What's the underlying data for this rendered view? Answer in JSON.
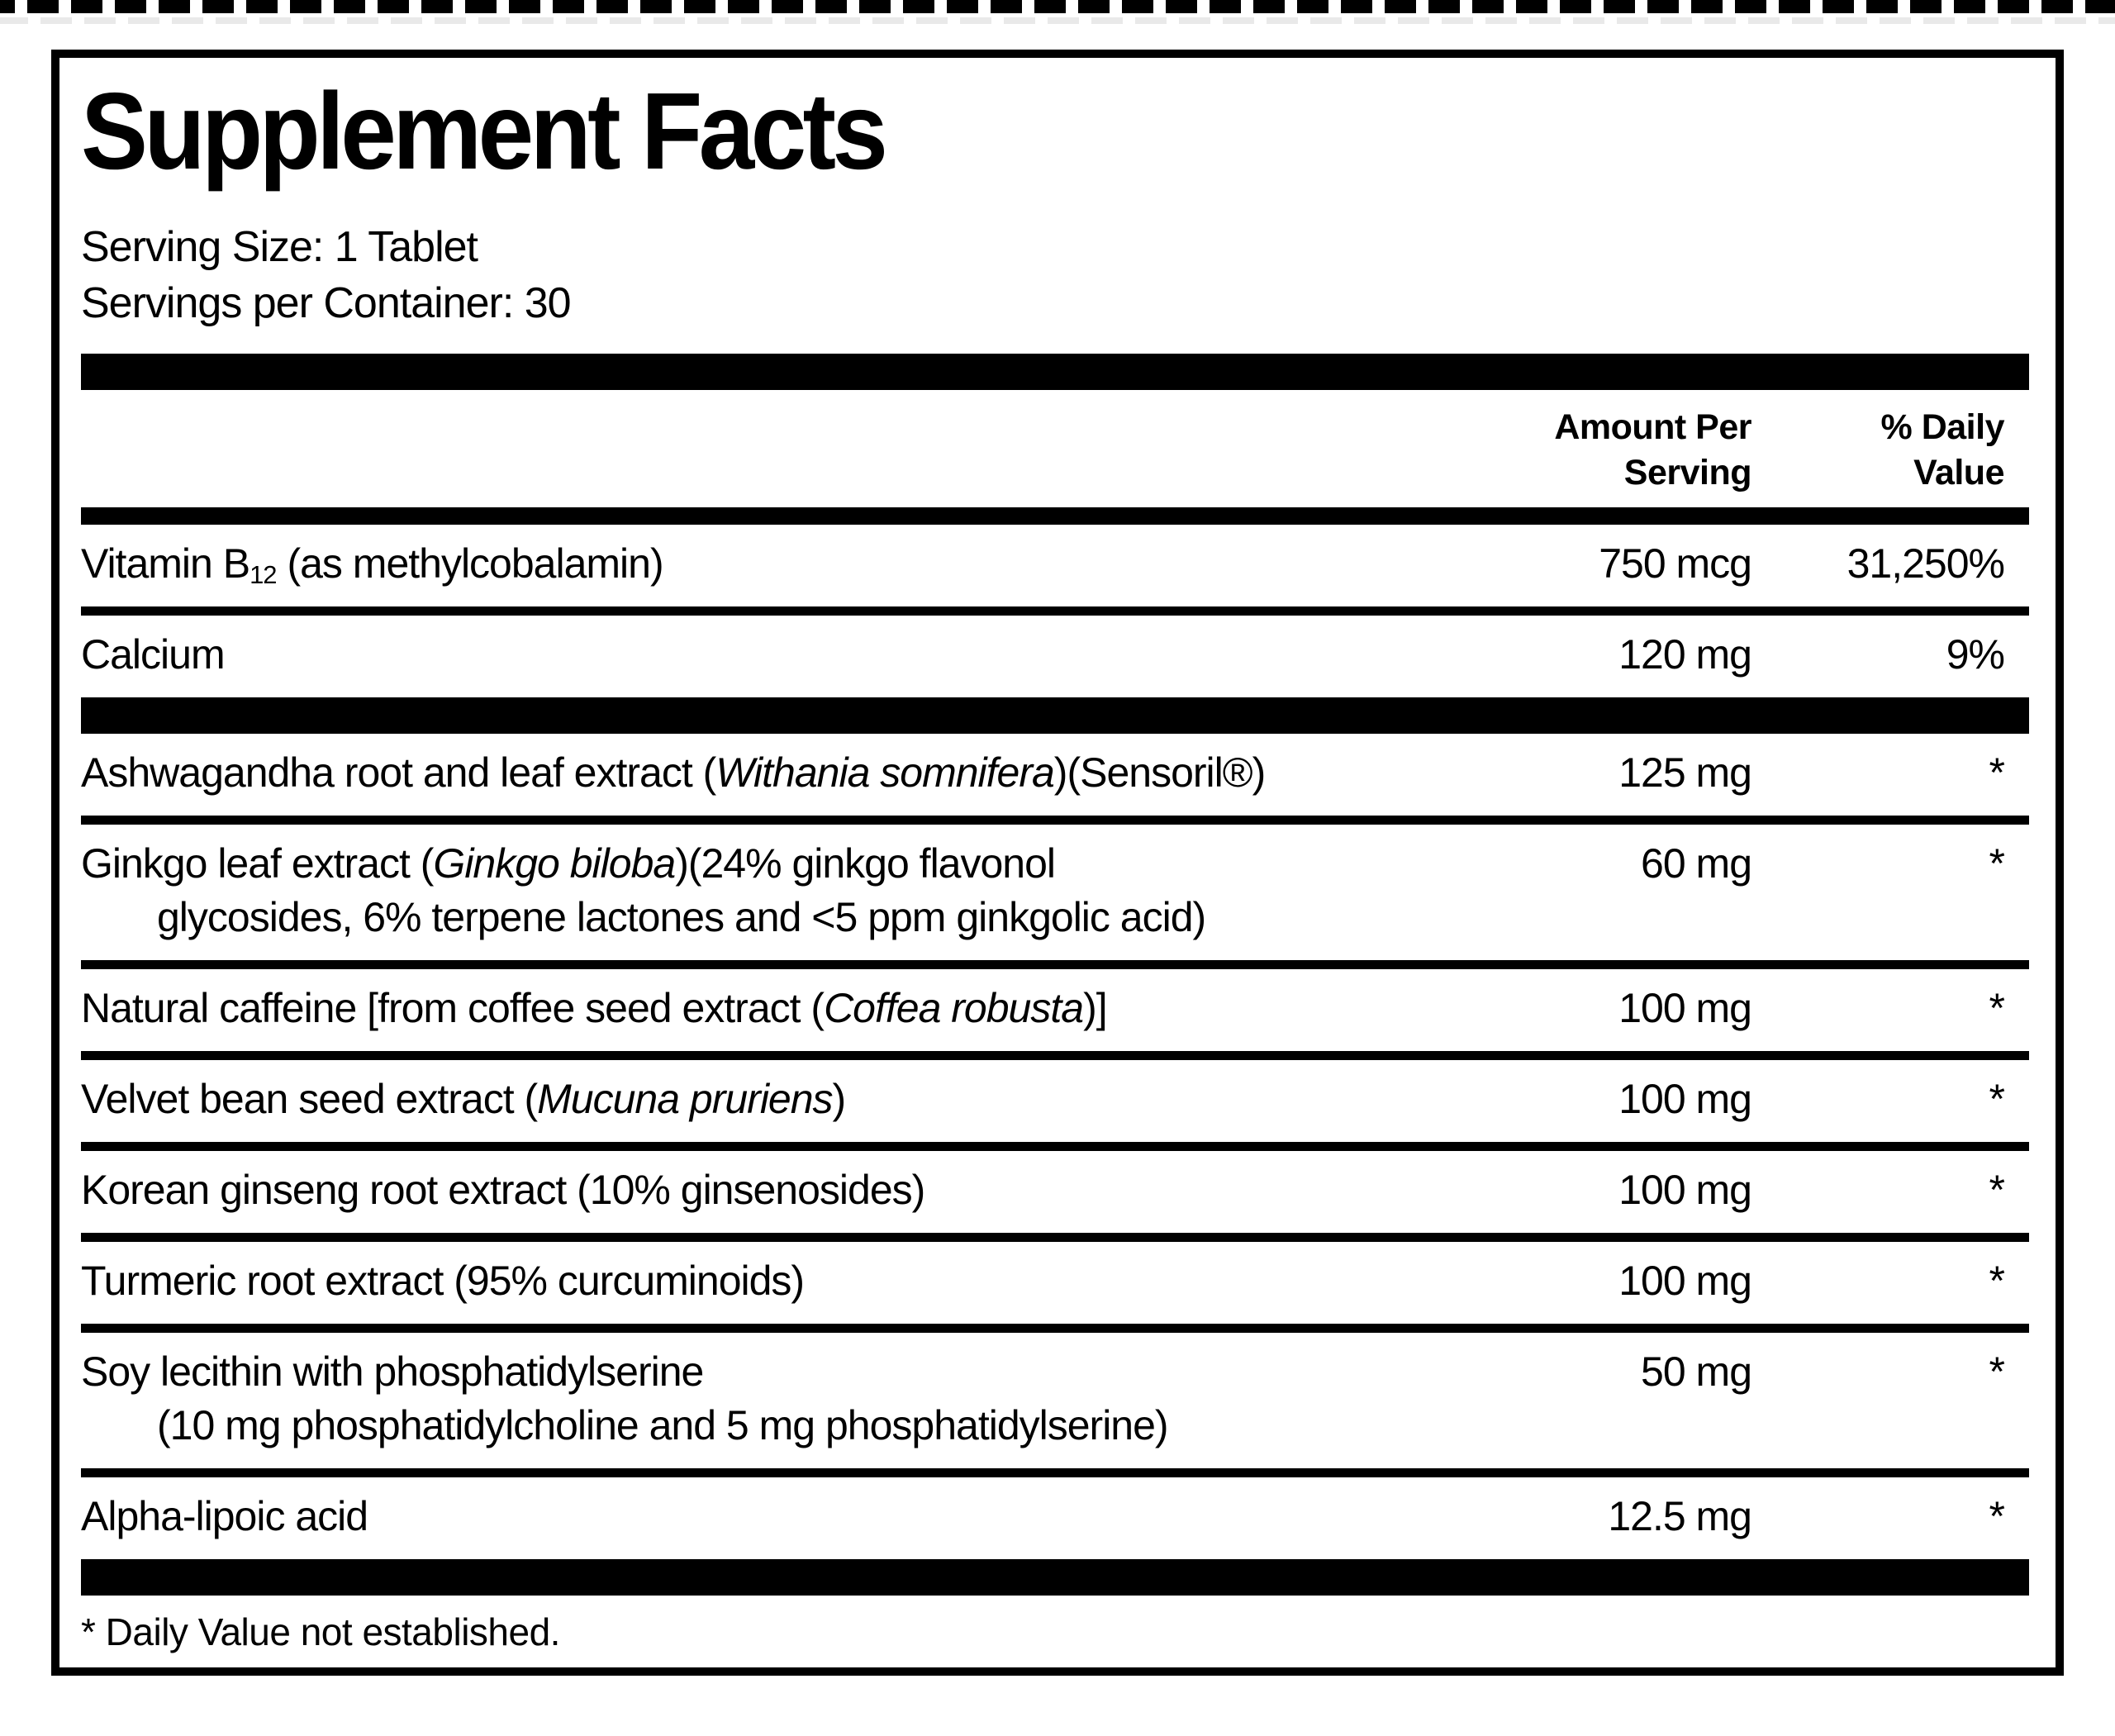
{
  "label": {
    "title": "Supplement Facts",
    "serving_size": "Serving Size: 1 Tablet",
    "servings_per_container": "Servings per Container: 30",
    "header": {
      "amount_line1": "Amount Per",
      "amount_line2": "Serving",
      "dv_line1": "% Daily",
      "dv_line2": "Value"
    },
    "rows": [
      {
        "name": [
          {
            "t": "Vitamin B"
          },
          {
            "t": "12",
            "sub": true
          },
          {
            "t": " (as methylcobalamin)"
          }
        ],
        "amount": "750 mcg",
        "dv": "31,250%",
        "sep_after": "thin"
      },
      {
        "name": [
          {
            "t": "Calcium"
          }
        ],
        "amount": "120 mg",
        "dv": "9%",
        "sep_after": "thick"
      },
      {
        "name": [
          {
            "t": "Ashwagandha root and leaf extract ("
          },
          {
            "t": "Withania somnifera",
            "italic": true
          },
          {
            "t": ")(Sensoril®)"
          }
        ],
        "amount": "125 mg",
        "dv": "*",
        "sep_after": "thin"
      },
      {
        "name": [
          {
            "t": "Ginkgo leaf extract ("
          },
          {
            "t": "Ginkgo biloba",
            "italic": true
          },
          {
            "t": ")(24% ginkgo flavonol"
          }
        ],
        "name2": [
          {
            "t": "glycosides, 6% terpene lactones and <5 ppm ginkgolic acid)"
          }
        ],
        "amount": "60 mg",
        "dv": "*",
        "sep_after": "thin"
      },
      {
        "name": [
          {
            "t": "Natural caffeine [from coffee seed extract ("
          },
          {
            "t": "Coffea robusta",
            "italic": true
          },
          {
            "t": ")]"
          }
        ],
        "amount": "100 mg",
        "dv": "*",
        "sep_after": "thin"
      },
      {
        "name": [
          {
            "t": "Velvet bean seed extract ("
          },
          {
            "t": "Mucuna pruriens",
            "italic": true
          },
          {
            "t": ")"
          }
        ],
        "amount": "100 mg",
        "dv": "*",
        "sep_after": "thin"
      },
      {
        "name": [
          {
            "t": "Korean ginseng root extract (10% ginsenosides)"
          }
        ],
        "amount": "100 mg",
        "dv": "*",
        "sep_after": "thin"
      },
      {
        "name": [
          {
            "t": "Turmeric root extract (95% curcuminoids)"
          }
        ],
        "amount": "100 mg",
        "dv": "*",
        "sep_after": "thin"
      },
      {
        "name": [
          {
            "t": "Soy lecithin with phosphatidylserine"
          }
        ],
        "name2": [
          {
            "t": "(10 mg phosphatidylcholine and 5 mg phosphatidylserine)"
          }
        ],
        "amount": "50 mg",
        "dv": "*",
        "sep_after": "thin"
      },
      {
        "name": [
          {
            "t": "Alpha-lipoic acid"
          }
        ],
        "amount": "12.5 mg",
        "dv": "*",
        "sep_after": "thick"
      }
    ],
    "footnote": "* Daily Value not established."
  }
}
